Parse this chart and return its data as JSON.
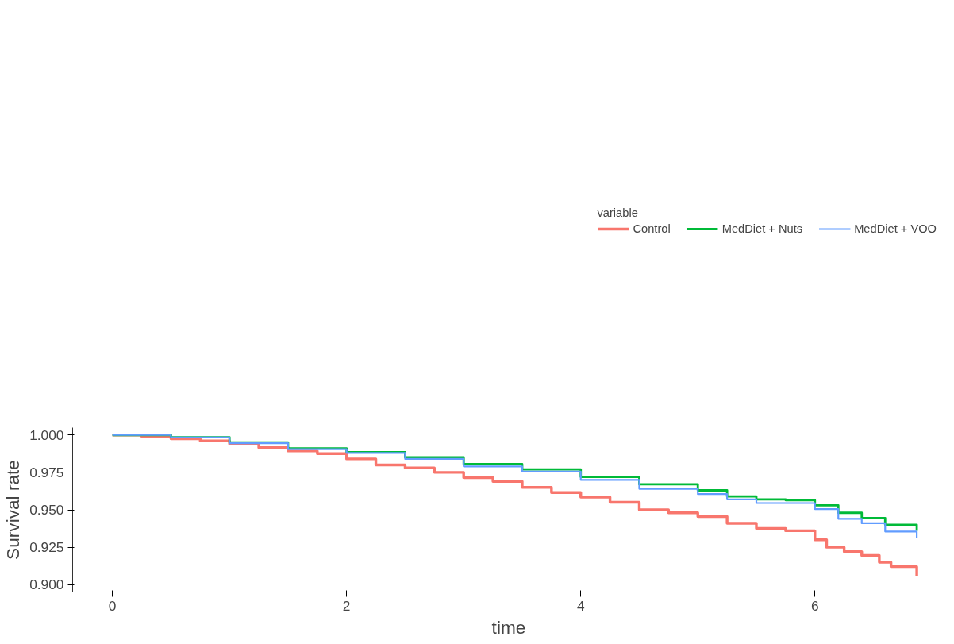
{
  "chart_data": {
    "type": "step",
    "xlabel": "time",
    "ylabel": "Survival rate",
    "legend_title": "variable",
    "legend": "top",
    "grid": false,
    "xlim": [
      -0.34,
      7.11
    ],
    "xticks": [
      0,
      2,
      4,
      6
    ],
    "ylim": [
      0.8951,
      1.0049
    ],
    "yticks": [
      {
        "value": 0.9,
        "label": "0.900"
      },
      {
        "value": 0.925,
        "label": "0.925"
      },
      {
        "value": 0.95,
        "label": "0.950"
      },
      {
        "value": 0.975,
        "label": "0.975"
      },
      {
        "value": 1.0,
        "label": "1.000"
      }
    ],
    "series": [
      {
        "name": "Control",
        "color": "#f8766d",
        "x": [
          0,
          0.25,
          0.5,
          0.75,
          1.0,
          1.25,
          1.5,
          1.75,
          2.0,
          2.25,
          2.5,
          2.75,
          3.0,
          3.25,
          3.5,
          3.75,
          4.0,
          4.25,
          4.5,
          4.75,
          5.0,
          5.25,
          5.5,
          5.75,
          6.0,
          6.1,
          6.25,
          6.4,
          6.55,
          6.65,
          6.87,
          6.87
        ],
        "values": [
          1.0,
          0.999,
          0.9975,
          0.996,
          0.994,
          0.9915,
          0.9893,
          0.9875,
          0.984,
          0.98,
          0.978,
          0.975,
          0.9715,
          0.969,
          0.965,
          0.9615,
          0.9585,
          0.955,
          0.95,
          0.948,
          0.9455,
          0.941,
          0.9375,
          0.936,
          0.93,
          0.925,
          0.922,
          0.9195,
          0.915,
          0.912,
          0.912,
          0.906
        ]
      },
      {
        "name": "MedDiet + Nuts",
        "color": "#00ba38",
        "x": [
          0,
          0.5,
          1.0,
          1.5,
          2.0,
          2.5,
          3.0,
          3.5,
          4.0,
          4.5,
          5.0,
          5.25,
          5.5,
          5.75,
          6.0,
          6.2,
          6.4,
          6.6,
          6.87,
          6.87
        ],
        "values": [
          1.0,
          0.9985,
          0.995,
          0.991,
          0.9885,
          0.985,
          0.9805,
          0.977,
          0.972,
          0.967,
          0.963,
          0.959,
          0.957,
          0.9565,
          0.953,
          0.948,
          0.9445,
          0.94,
          0.9395,
          0.936
        ]
      },
      {
        "name": "MedDiet + VOO",
        "color": "#619cff",
        "x": [
          0,
          0.5,
          1.0,
          1.5,
          2.0,
          2.5,
          3.0,
          3.5,
          4.0,
          4.5,
          5.0,
          5.25,
          5.5,
          5.75,
          6.0,
          6.2,
          6.4,
          6.6,
          6.87,
          6.87
        ],
        "values": [
          1.0,
          0.9983,
          0.9945,
          0.9905,
          0.988,
          0.984,
          0.979,
          0.9755,
          0.97,
          0.964,
          0.9605,
          0.957,
          0.9545,
          0.9545,
          0.9505,
          0.944,
          0.941,
          0.9355,
          0.9355,
          0.931
        ]
      }
    ]
  }
}
